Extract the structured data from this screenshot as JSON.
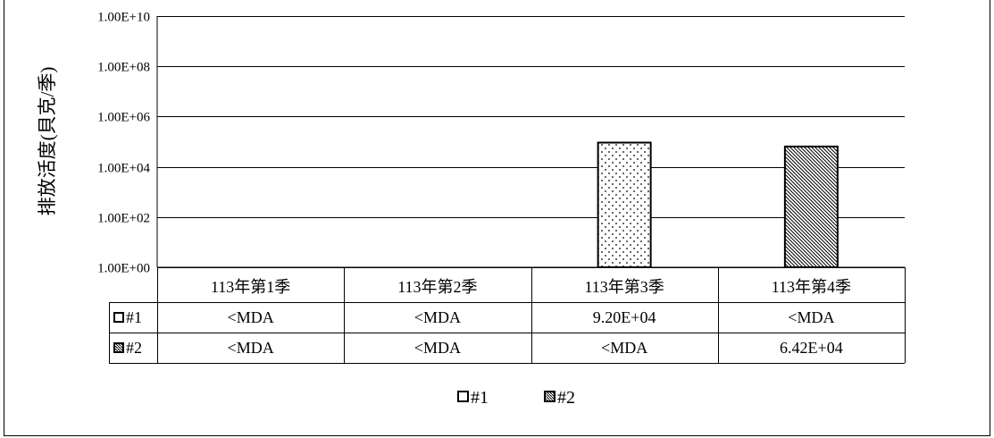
{
  "chart_data": {
    "type": "bar",
    "title": "",
    "xlabel": "",
    "ylabel": "排放活度(貝克/季)",
    "yscale": "log",
    "ylim": [
      1,
      10000000000
    ],
    "yticks": [
      "1.00E+00",
      "1.00E+02",
      "1.00E+04",
      "1.00E+06",
      "1.00E+08",
      "1.00E+10"
    ],
    "categories": [
      "113年第1季",
      "113年第2季",
      "113年第3季",
      "113年第4季"
    ],
    "series": [
      {
        "name": "#1",
        "pattern": "dots",
        "values": [
          null,
          null,
          92000,
          null
        ],
        "table": [
          "<MDA",
          "<MDA",
          "9.20E+04",
          "<MDA"
        ]
      },
      {
        "name": "#2",
        "pattern": "diagonal-hatch",
        "values": [
          null,
          null,
          null,
          64200
        ],
        "table": [
          "<MDA",
          "<MDA",
          "<MDA",
          "6.42E+04"
        ]
      }
    ],
    "grid": true,
    "legend": "bottom",
    "data_table": true
  }
}
